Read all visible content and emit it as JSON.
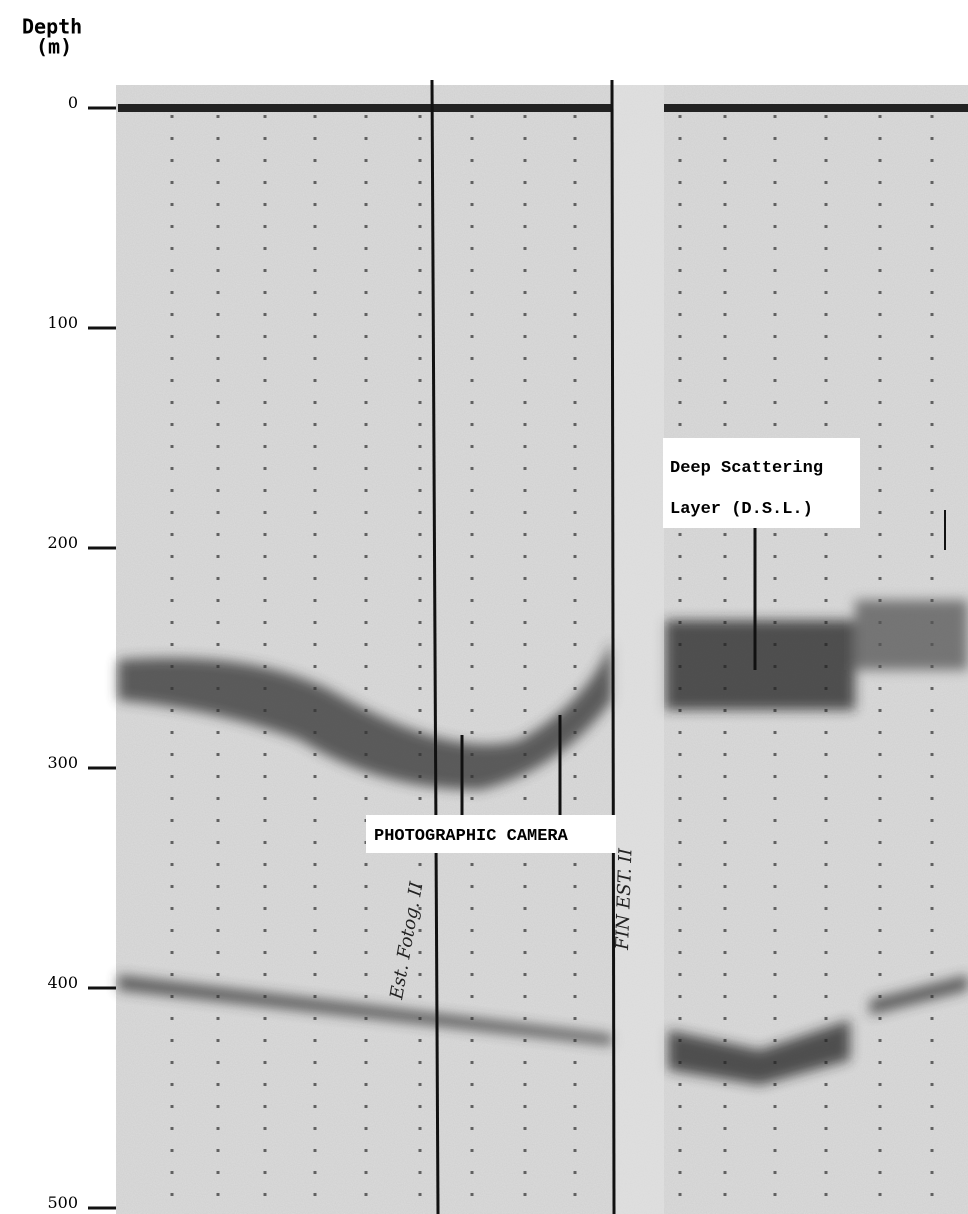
{
  "axis": {
    "title_line1": "Depth",
    "title_line2": "(m)",
    "ticks": [
      0,
      100,
      200,
      300,
      400,
      500
    ]
  },
  "annotations": {
    "camera": "PHOTOGRAPHIC CAMERA",
    "dsl_line1": "Deep Scattering",
    "dsl_line2": "Layer (D.S.L.)"
  },
  "handwritten": {
    "left": "Est. Fotog. II",
    "right": "FIN EST. II"
  }
}
